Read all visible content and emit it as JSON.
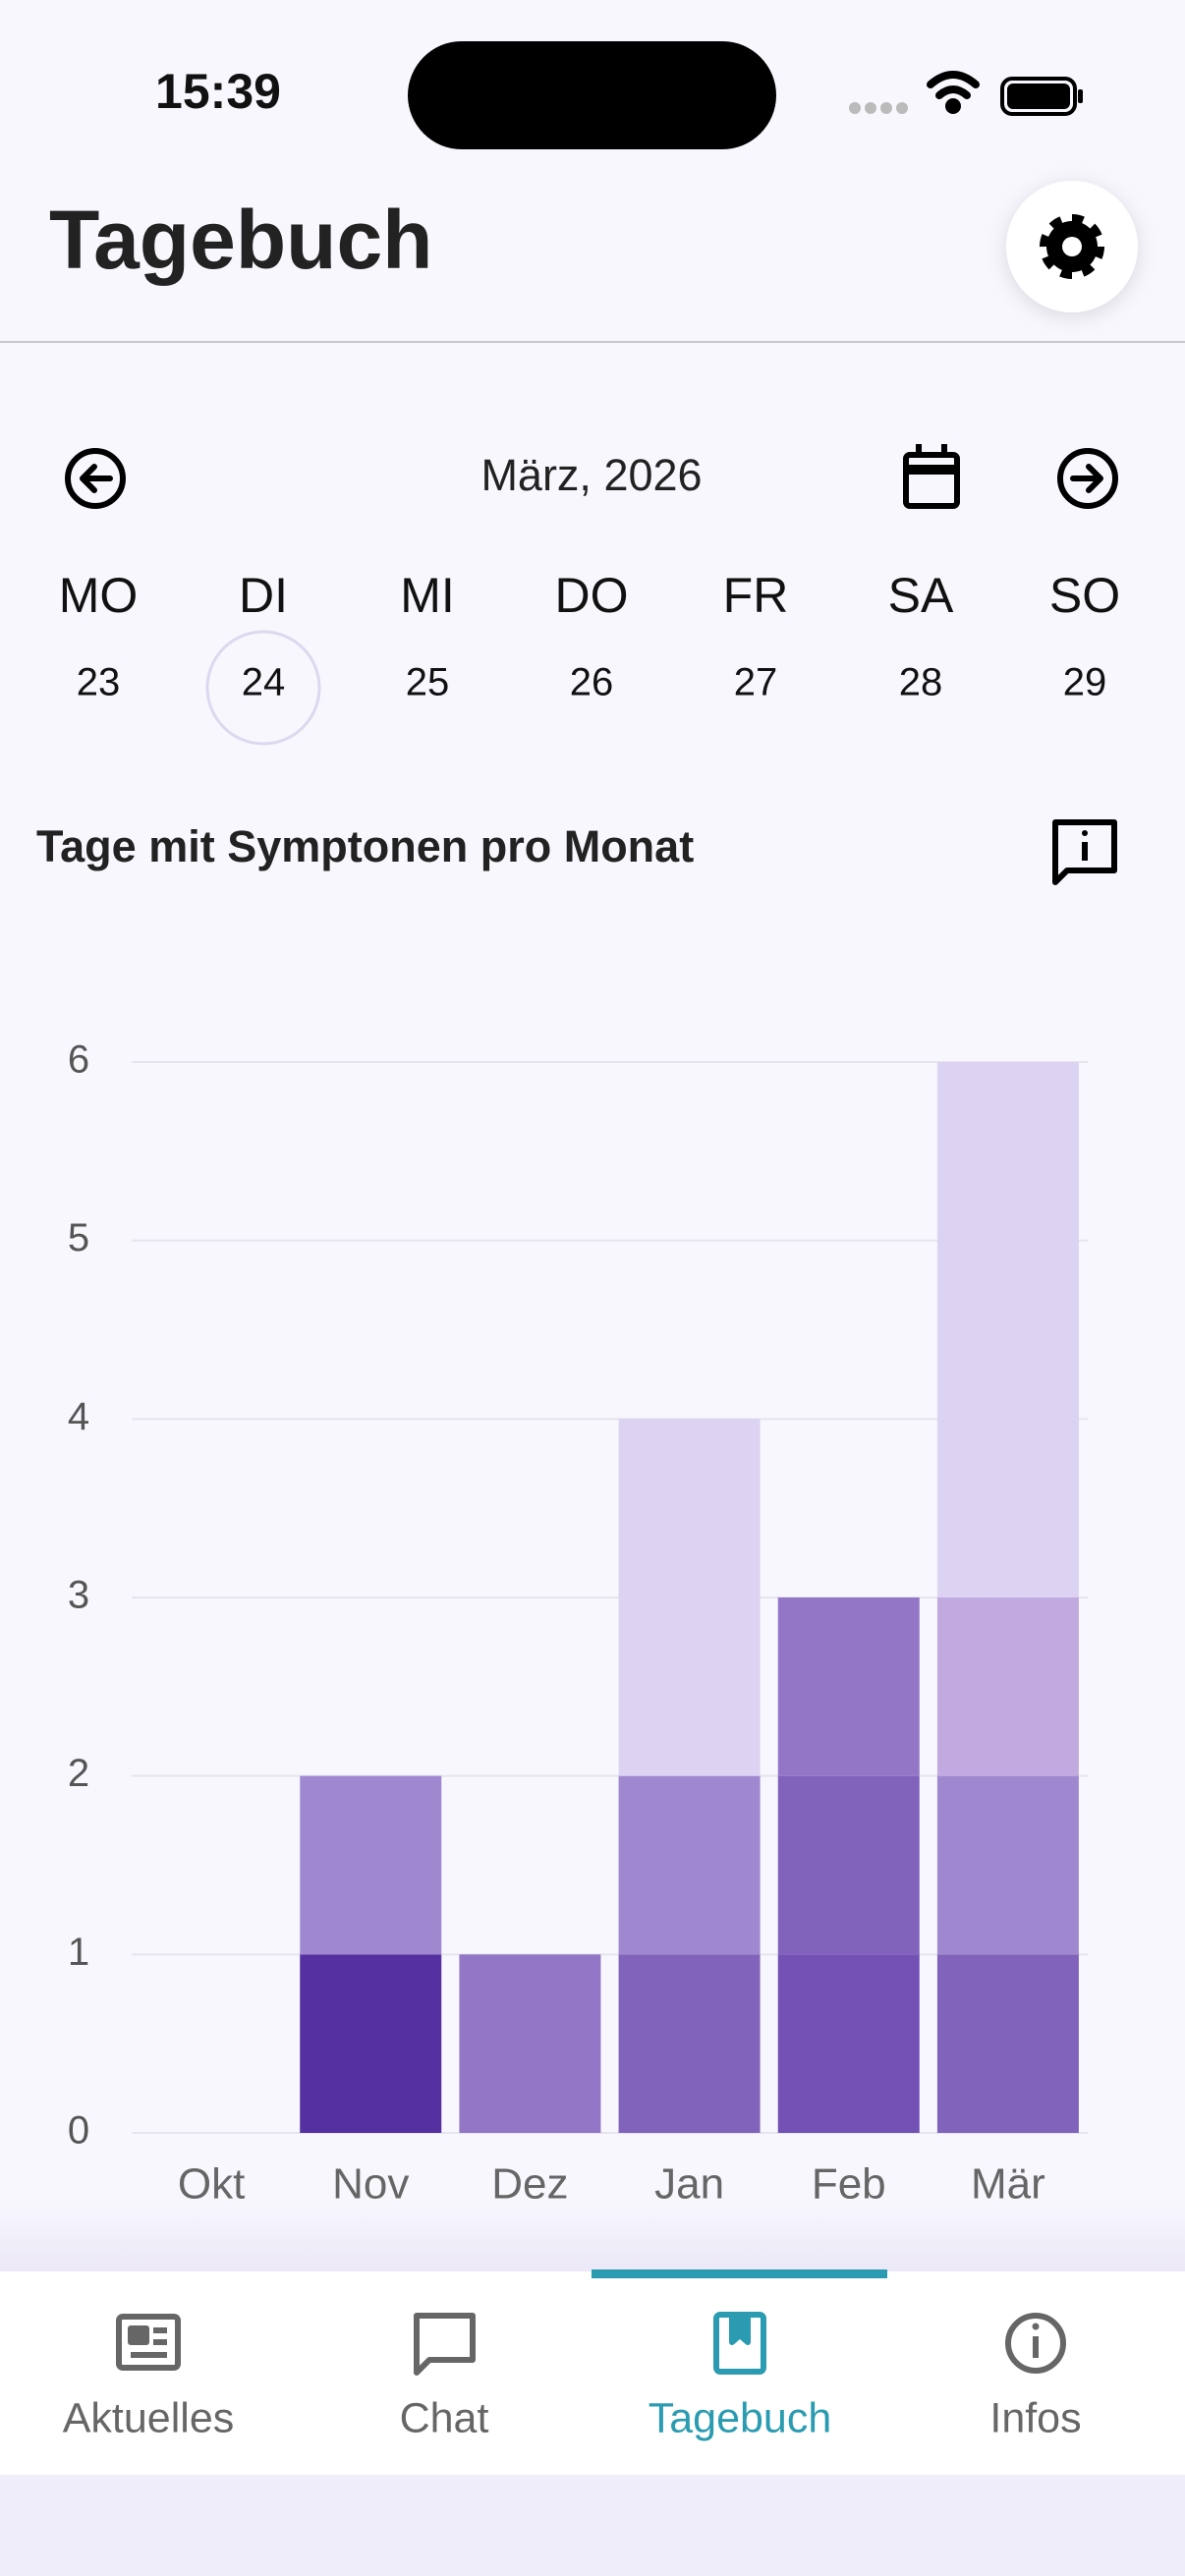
{
  "status": {
    "time": "15:39"
  },
  "header": {
    "title": "Tagebuch"
  },
  "calendar": {
    "month": "März, 2026",
    "days": [
      {
        "name": "MO",
        "date": 23
      },
      {
        "name": "DI",
        "date": 24
      },
      {
        "name": "MI",
        "date": 25
      },
      {
        "name": "DO",
        "date": 26
      },
      {
        "name": "FR",
        "date": 27
      },
      {
        "name": "SA",
        "date": 28
      },
      {
        "name": "SO",
        "date": 29
      }
    ],
    "selected": 1
  },
  "chart_data": {
    "type": "bar",
    "stacked": true,
    "title": "Tage mit Symptonen pro Monat",
    "categories": [
      "Okt",
      "Nov",
      "Dez",
      "Jan",
      "Feb",
      "Mär"
    ],
    "series": [
      {
        "values": [
          0,
          1,
          1,
          1,
          1,
          1
        ],
        "colors": [
          null,
          "#5530a0",
          "#9377c6",
          "#8163bc",
          "#7351b5",
          "#8163bc"
        ]
      },
      {
        "values": [
          0,
          1,
          0,
          1,
          1,
          1
        ],
        "colors": [
          null,
          "#a088d0",
          null,
          "#a088d0",
          "#8163bc",
          "#a088d0"
        ]
      },
      {
        "values": [
          0,
          0,
          0,
          2,
          1,
          1
        ],
        "colors": [
          null,
          null,
          null,
          "#dcd2f2",
          "#9377c6",
          "#c0aadf"
        ]
      },
      {
        "values": [
          0,
          0,
          0,
          0,
          0,
          3
        ],
        "colors": [
          null,
          null,
          null,
          null,
          null,
          "#dcd2f2"
        ]
      }
    ],
    "ylim": [
      0,
      6
    ],
    "yticks": [
      0,
      1,
      2,
      3,
      4,
      5,
      6
    ],
    "grid": true
  },
  "nav": {
    "tabs": [
      "Aktuelles",
      "Chat",
      "Tagebuch",
      "Infos"
    ],
    "active": 2
  }
}
